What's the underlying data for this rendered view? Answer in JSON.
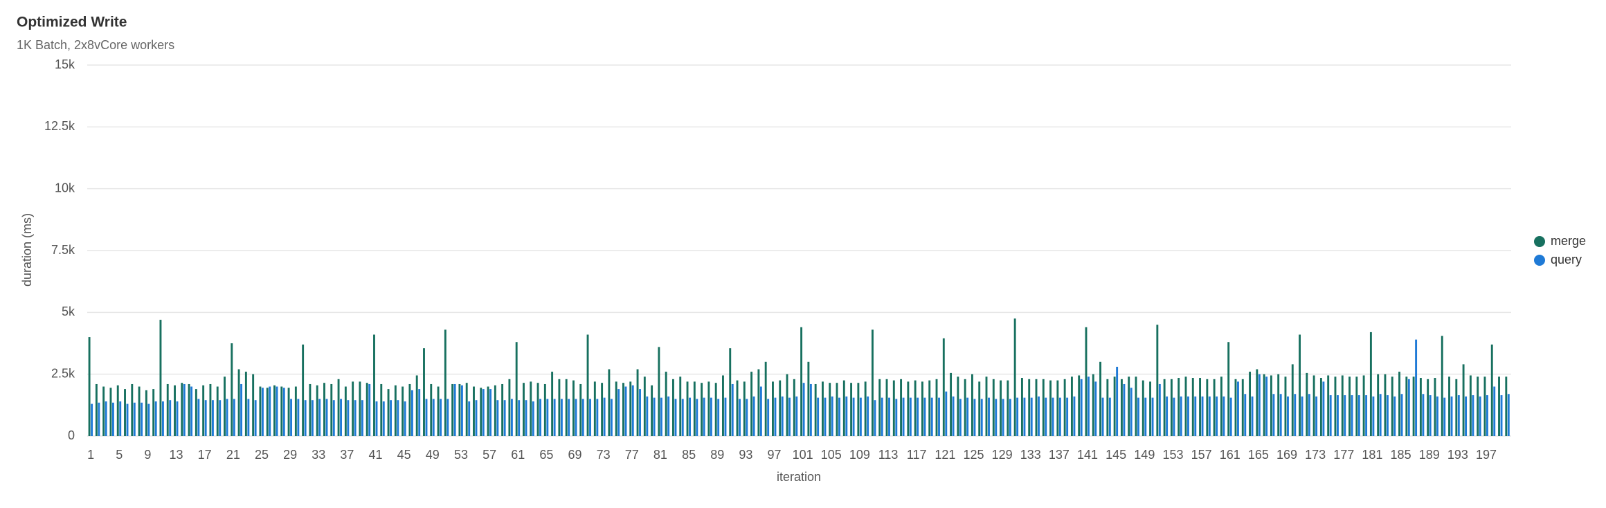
{
  "chart_data": {
    "type": "bar",
    "title": "Optimized Write",
    "subtitle": "1K Batch, 2x8vCore workers",
    "x_label": "iteration",
    "y_label": "duration (ms)",
    "categories": [
      1,
      null,
      null,
      null,
      5,
      null,
      null,
      null,
      9,
      null,
      null,
      null,
      13,
      null,
      null,
      null,
      17,
      null,
      null,
      null,
      21,
      null,
      null,
      null,
      25,
      null,
      null,
      null,
      29,
      null,
      null,
      null,
      33,
      null,
      null,
      null,
      37,
      null,
      null,
      null,
      41,
      null,
      null,
      null,
      45,
      null,
      null,
      null,
      49,
      null,
      null,
      null,
      53,
      null,
      null,
      null,
      57,
      null,
      null,
      null,
      61,
      null,
      null,
      null,
      65,
      null,
      null,
      null,
      69,
      null,
      null,
      null,
      73,
      null,
      null,
      null,
      77,
      null,
      null,
      null,
      81,
      null,
      null,
      null,
      85,
      null,
      null,
      null,
      89,
      null,
      null,
      null,
      93,
      null,
      null,
      null,
      97,
      null,
      null,
      null,
      101,
      null,
      null,
      null,
      105,
      null,
      null,
      null,
      109,
      null,
      null,
      null,
      113,
      null,
      null,
      null,
      117,
      null,
      null,
      null,
      121,
      null,
      null,
      null,
      125,
      null,
      null,
      null,
      129,
      null,
      null,
      null,
      133,
      null,
      null,
      null,
      137,
      null,
      null,
      null,
      141,
      null,
      null,
      null,
      145,
      null,
      null,
      null,
      149,
      null,
      null,
      null,
      153,
      null,
      null,
      null,
      157,
      null,
      null,
      null,
      161,
      null,
      null,
      null,
      165,
      null,
      null,
      null,
      169,
      null,
      null,
      null,
      173,
      null,
      null,
      null,
      177,
      null,
      null,
      null,
      181,
      null,
      null,
      null,
      185,
      null,
      null,
      null,
      189,
      null,
      null,
      null,
      193,
      null,
      null,
      null,
      197,
      null,
      null,
      null
    ],
    "series": [
      {
        "name": "merge",
        "color": "#17705f",
        "values": [
          4000,
          2100,
          2000,
          1950,
          2050,
          1900,
          2100,
          2000,
          1850,
          1900,
          4700,
          2100,
          2050,
          2150,
          2100,
          1900,
          2050,
          2100,
          2000,
          2400,
          3750,
          2700,
          2600,
          2500,
          2000,
          1950,
          2050,
          2000,
          1950,
          2000,
          3700,
          2100,
          2050,
          2150,
          2100,
          2300,
          2000,
          2200,
          2200,
          2150,
          4100,
          2100,
          1900,
          2050,
          2000,
          2100,
          2450,
          3550,
          2100,
          2000,
          4300,
          2100,
          2100,
          2150,
          2000,
          1950,
          2000,
          2050,
          2100,
          2300,
          3800,
          2150,
          2200,
          2150,
          2100,
          2600,
          2300,
          2300,
          2250,
          2100,
          4100,
          2200,
          2150,
          2700,
          2200,
          2150,
          2200,
          2700,
          2400,
          2050,
          3600,
          2600,
          2300,
          2400,
          2200,
          2200,
          2150,
          2200,
          2150,
          2450,
          3550,
          2250,
          2200,
          2600,
          2700,
          3000,
          2200,
          2250,
          2500,
          2300,
          4400,
          3000,
          2100,
          2200,
          2150,
          2150,
          2250,
          2150,
          2150,
          2200,
          4300,
          2300,
          2300,
          2250,
          2300,
          2200,
          2250,
          2200,
          2250,
          2300,
          3950,
          2550,
          2400,
          2300,
          2500,
          2200,
          2400,
          2300,
          2250,
          2250,
          4750,
          2350,
          2300,
          2300,
          2300,
          2250,
          2250,
          2300,
          2400,
          2450,
          4400,
          2500,
          3000,
          2300,
          2400,
          2300,
          2400,
          2400,
          2250,
          2200,
          4500,
          2300,
          2300,
          2350,
          2400,
          2350,
          2350,
          2300,
          2300,
          2400,
          3800,
          2300,
          2300,
          2600,
          2700,
          2500,
          2450,
          2500,
          2400,
          2900,
          4100,
          2550,
          2450,
          2350,
          2450,
          2400,
          2450,
          2400,
          2400,
          2450,
          4200,
          2500,
          2500,
          2400,
          2600,
          2400,
          2400,
          2350,
          2300,
          2350,
          4050,
          2400,
          2300,
          2900,
          2450,
          2400,
          2400,
          3700,
          2400,
          2400
        ]
      },
      {
        "name": "query",
        "color": "#1f7ad6",
        "values": [
          1300,
          1350,
          1400,
          1350,
          1400,
          1300,
          1350,
          1350,
          1300,
          1400,
          1400,
          1450,
          1400,
          2100,
          2000,
          1500,
          1450,
          1450,
          1450,
          1500,
          1500,
          2100,
          1500,
          1450,
          1950,
          2000,
          2000,
          1950,
          1500,
          1500,
          1450,
          1450,
          1500,
          1500,
          1450,
          1500,
          1450,
          1450,
          1450,
          2100,
          1400,
          1400,
          1450,
          1450,
          1400,
          1850,
          1900,
          1500,
          1500,
          1500,
          1500,
          2100,
          2050,
          1400,
          1450,
          1900,
          1900,
          1450,
          1450,
          1500,
          1450,
          1450,
          1400,
          1500,
          1500,
          1500,
          1500,
          1500,
          1500,
          1500,
          1500,
          1500,
          1550,
          1500,
          1900,
          2000,
          2050,
          1900,
          1600,
          1550,
          1550,
          1600,
          1500,
          1500,
          1550,
          1500,
          1550,
          1550,
          1500,
          1550,
          2100,
          1500,
          1500,
          1600,
          2000,
          1500,
          1550,
          1600,
          1550,
          1600,
          2150,
          2100,
          1550,
          1550,
          1600,
          1550,
          1600,
          1550,
          1550,
          1600,
          1450,
          1550,
          1550,
          1500,
          1550,
          1550,
          1550,
          1550,
          1550,
          1550,
          1800,
          1600,
          1500,
          1550,
          1500,
          1500,
          1550,
          1500,
          1500,
          1500,
          1550,
          1550,
          1550,
          1600,
          1550,
          1550,
          1550,
          1550,
          1600,
          2300,
          2400,
          2200,
          1550,
          1550,
          2800,
          2100,
          1950,
          1550,
          1550,
          1550,
          2100,
          1600,
          1550,
          1600,
          1600,
          1600,
          1600,
          1600,
          1600,
          1600,
          1550,
          2200,
          1700,
          1600,
          2500,
          2400,
          1700,
          1700,
          1600,
          1700,
          1600,
          1700,
          1600,
          2200,
          1650,
          1650,
          1650,
          1650,
          1650,
          1650,
          1600,
          1700,
          1650,
          1600,
          1700,
          2300,
          3900,
          1700,
          1650,
          1600,
          1550,
          1600,
          1650,
          1600,
          1650,
          1600,
          1650,
          2000,
          1650,
          1700
        ]
      }
    ],
    "ylim": [
      0,
      15000
    ],
    "yticks": [
      0,
      {
        "value": 2500,
        "label": "2.5k"
      },
      {
        "value": 5000,
        "label": "5k"
      },
      {
        "value": 7500,
        "label": "7.5k"
      },
      {
        "value": 10000,
        "label": "10k"
      },
      {
        "value": 12500,
        "label": "12.5k"
      },
      {
        "value": 15000,
        "label": "15k"
      }
    ],
    "grid": true,
    "legend": "right"
  }
}
